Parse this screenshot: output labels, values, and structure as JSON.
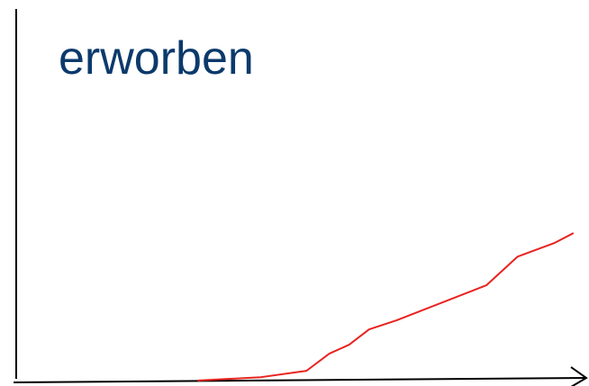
{
  "chart_data": {
    "type": "line",
    "title": "erworben",
    "x": [
      32,
      43,
      51,
      55,
      58.5,
      62,
      66.8,
      82.6,
      88.1,
      94.5,
      97.8
    ],
    "series": [
      {
        "color": "#e8231f",
        "values": [
          0.5,
          1.4,
          3.1,
          7.7,
          10.1,
          14.2,
          16.6,
          26,
          33.7,
          37.3,
          39.9
        ]
      }
    ],
    "xlim": [
      0,
      100
    ],
    "ylim": [
      0,
      100
    ]
  }
}
